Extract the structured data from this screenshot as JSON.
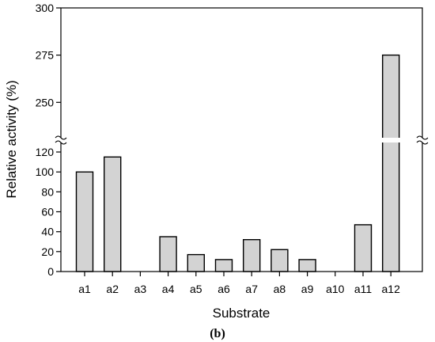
{
  "chart_data": {
    "type": "bar",
    "categories": [
      "a1",
      "a2",
      "a3",
      "a4",
      "a5",
      "a6",
      "a7",
      "a8",
      "a9",
      "a10",
      "a11",
      "a12"
    ],
    "values": [
      100,
      115,
      0,
      35,
      17,
      12,
      32,
      22,
      12,
      0,
      47,
      275
    ],
    "xlabel": "Substrate",
    "ylabel": "Relative activity (%)",
    "panel_label": "(b)",
    "y_lower_segment": {
      "range": [
        0,
        120
      ],
      "ticks": [
        0,
        20,
        40,
        60,
        80,
        100,
        120
      ]
    },
    "y_upper_segment": {
      "range": [
        230,
        300
      ],
      "ticks": [
        250,
        275,
        300
      ]
    },
    "axis_break": true,
    "grid": false,
    "legend": "none",
    "colors": {
      "bar_fill": "#d3d3d3",
      "bar_stroke": "#000000"
    }
  }
}
